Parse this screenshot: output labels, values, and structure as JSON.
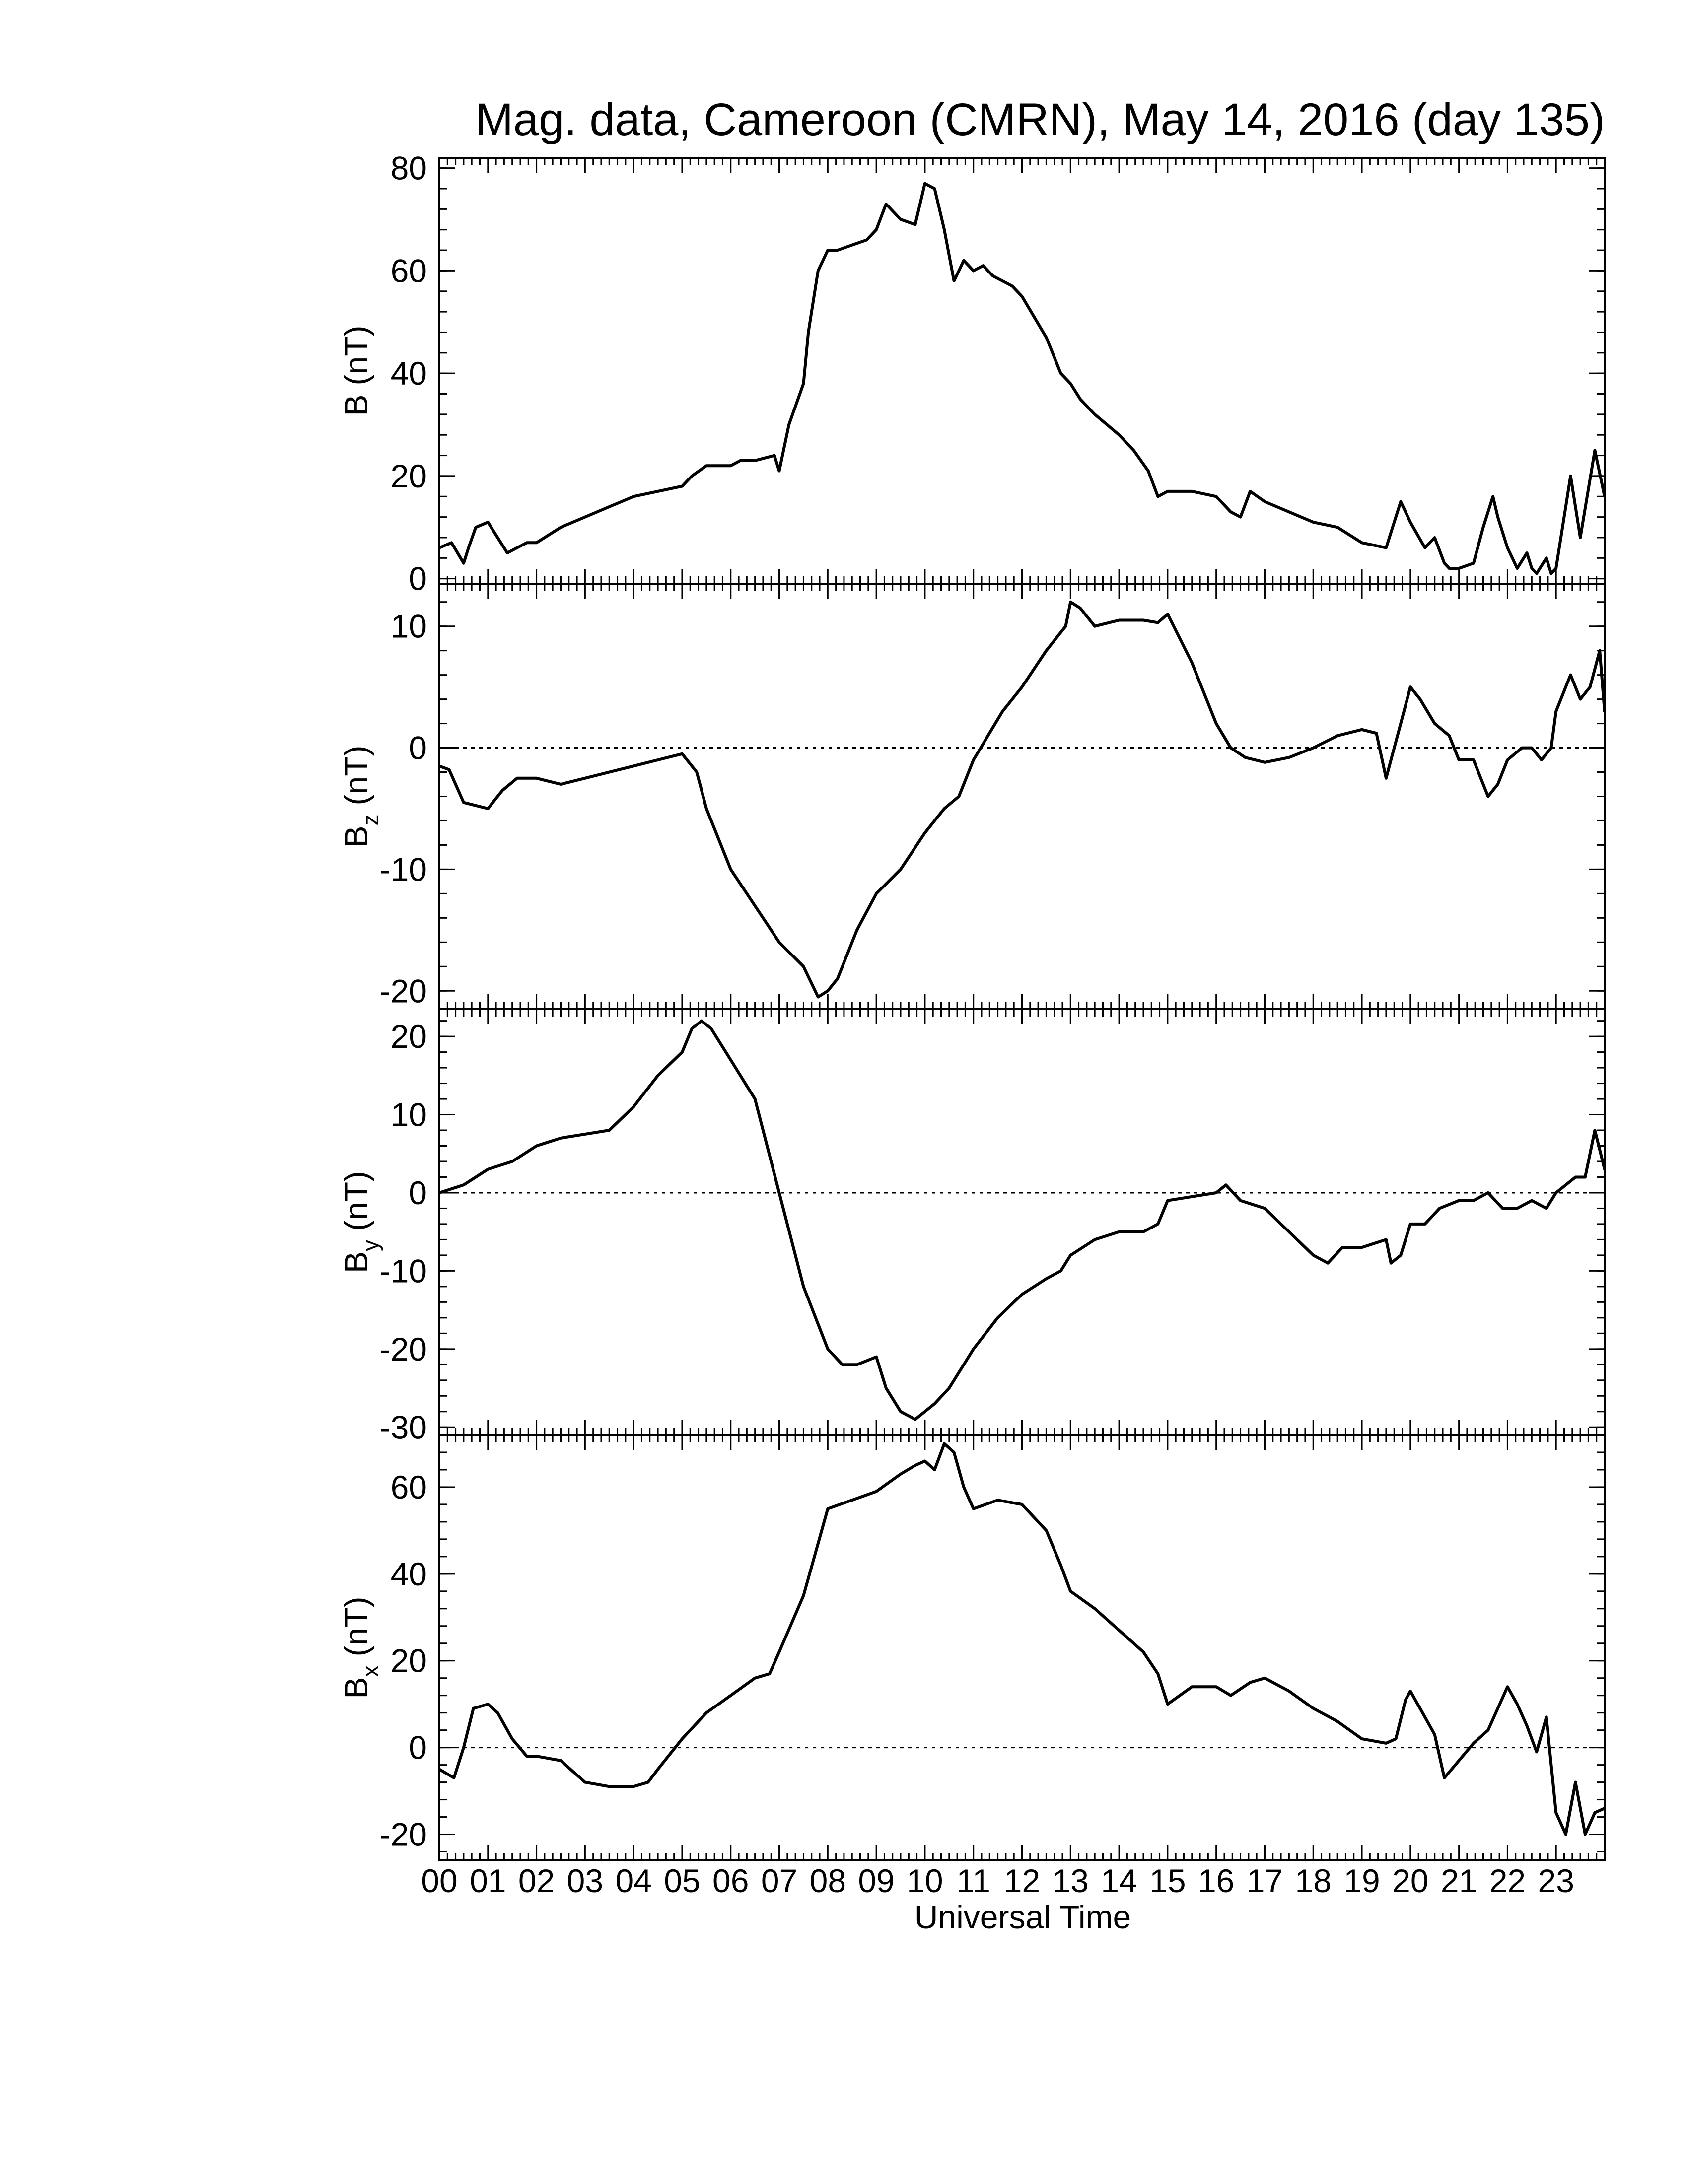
{
  "chart_data": {
    "type": "line",
    "title": "Mag. data, Cameroon (CMRN), May 14, 2016 (day 135)",
    "xlabel": "Universal Time",
    "x_unit": "hours UT",
    "xlim": [
      0,
      24
    ],
    "x_tick_labels": [
      "00",
      "01",
      "02",
      "03",
      "04",
      "05",
      "06",
      "07",
      "08",
      "09",
      "10",
      "11",
      "12",
      "13",
      "14",
      "15",
      "16",
      "17",
      "18",
      "19",
      "20",
      "21",
      "22",
      "23"
    ],
    "grid": false,
    "legend": "none",
    "panels": [
      {
        "id": "B",
        "ylabel_main": "B",
        "ylabel_sub": "",
        "ylabel_unit": "(nT)",
        "ylim": [
          -1,
          82
        ],
        "yticks": [
          0,
          20,
          40,
          60,
          80
        ],
        "zero_line": false,
        "series": [
          {
            "color": "#000000",
            "x": [
              0,
              0.25,
              0.5,
              0.6,
              0.75,
              1.0,
              1.2,
              1.4,
              1.6,
              1.8,
              2.0,
              2.5,
              3.0,
              3.5,
              4.0,
              4.5,
              5.0,
              5.2,
              5.5,
              6.0,
              6.2,
              6.5,
              6.9,
              7.0,
              7.2,
              7.5,
              7.6,
              7.8,
              8.0,
              8.2,
              8.5,
              8.8,
              9.0,
              9.2,
              9.5,
              9.8,
              10.0,
              10.2,
              10.4,
              10.6,
              10.8,
              11.0,
              11.2,
              11.4,
              11.6,
              11.8,
              12.0,
              12.5,
              12.8,
              13.0,
              13.2,
              13.5,
              14.0,
              14.3,
              14.6,
              14.8,
              15.0,
              15.2,
              15.5,
              16.0,
              16.3,
              16.5,
              16.7,
              17.0,
              17.5,
              18.0,
              18.5,
              19.0,
              19.5,
              19.7,
              19.8,
              20.0,
              20.3,
              20.5,
              20.7,
              20.8,
              21.0,
              21.3,
              21.5,
              21.7,
              21.8,
              22.0,
              22.2,
              22.4,
              22.5,
              22.6,
              22.8,
              22.9,
              23.0,
              23.3,
              23.5,
              23.8,
              24.0
            ],
            "y": [
              6,
              7,
              3,
              6,
              10,
              11,
              8,
              5,
              6,
              7,
              7,
              10,
              12,
              14,
              16,
              17,
              18,
              20,
              22,
              22,
              23,
              23,
              24,
              21,
              30,
              38,
              48,
              60,
              64,
              64,
              65,
              66,
              68,
              73,
              70,
              69,
              77,
              76,
              68,
              58,
              62,
              60,
              61,
              59,
              58,
              57,
              55,
              47,
              40,
              38,
              35,
              32,
              28,
              25,
              21,
              16,
              17,
              17,
              17,
              16,
              13,
              12,
              17,
              15,
              13,
              11,
              10,
              7,
              6,
              12,
              15,
              11,
              6,
              8,
              3,
              2,
              2,
              3,
              10,
              16,
              12,
              6,
              2,
              5,
              2,
              1,
              4,
              1,
              2,
              20,
              8,
              25,
              16
            ]
          }
        ]
      },
      {
        "id": "Bz",
        "ylabel_main": "B",
        "ylabel_sub": "z",
        "ylabel_unit": "(nT)",
        "ylim": [
          -21.5,
          13.5
        ],
        "yticks": [
          -20,
          -10,
          0,
          10
        ],
        "zero_line": true,
        "series": [
          {
            "color": "#000000",
            "x": [
              0,
              0.2,
              0.5,
              1.0,
              1.3,
              1.6,
              2.0,
              2.5,
              3.0,
              3.5,
              4.0,
              4.5,
              5.0,
              5.3,
              5.5,
              6.0,
              6.5,
              7.0,
              7.5,
              7.8,
              8.0,
              8.2,
              8.4,
              8.6,
              9.0,
              9.5,
              10.0,
              10.4,
              10.7,
              11.0,
              11.3,
              11.6,
              12.0,
              12.5,
              12.9,
              13.0,
              13.2,
              13.5,
              14.0,
              14.5,
              14.8,
              15.0,
              15.5,
              16.0,
              16.3,
              16.6,
              17.0,
              17.5,
              18.0,
              18.5,
              19.0,
              19.3,
              19.5,
              19.6,
              19.8,
              20.0,
              20.2,
              20.5,
              20.8,
              21.0,
              21.3,
              21.6,
              21.8,
              22.0,
              22.3,
              22.5,
              22.7,
              22.9,
              23.0,
              23.3,
              23.5,
              23.7,
              23.9,
              24.0
            ],
            "y": [
              -1.5,
              -1.8,
              -4.5,
              -5,
              -3.5,
              -2.5,
              -2.5,
              -3,
              -2.5,
              -2,
              -1.5,
              -1,
              -0.5,
              -2,
              -5,
              -10,
              -13,
              -16,
              -18,
              -20.5,
              -20,
              -19,
              -17,
              -15,
              -12,
              -10,
              -7,
              -5,
              -4,
              -1,
              1,
              3,
              5,
              8,
              10,
              12,
              11.5,
              10,
              10.5,
              10.5,
              10.3,
              11,
              7,
              2,
              0,
              -0.8,
              -1.2,
              -0.8,
              0,
              1,
              1.5,
              1.2,
              -2.5,
              -1,
              2,
              5,
              4,
              2,
              1,
              -1,
              -1,
              -4,
              -3,
              -1,
              0,
              0,
              -1,
              0,
              3,
              6,
              4,
              5,
              8,
              3
            ]
          }
        ]
      },
      {
        "id": "By",
        "ylabel_main": "B",
        "ylabel_sub": "y",
        "ylabel_unit": "(nT)",
        "ylim": [
          -31,
          23.5
        ],
        "yticks": [
          -30,
          -20,
          -10,
          0,
          10,
          20
        ],
        "zero_line": true,
        "series": [
          {
            "color": "#000000",
            "x": [
              0,
              0.5,
              1.0,
              1.5,
              2.0,
              2.5,
              3.0,
              3.5,
              4.0,
              4.5,
              5.0,
              5.2,
              5.4,
              5.6,
              6.0,
              6.5,
              7.0,
              7.5,
              8.0,
              8.3,
              8.6,
              9.0,
              9.2,
              9.5,
              9.8,
              10.0,
              10.2,
              10.5,
              10.8,
              11.0,
              11.5,
              12.0,
              12.5,
              12.8,
              13.0,
              13.5,
              14.0,
              14.5,
              14.8,
              15.0,
              15.5,
              16.0,
              16.2,
              16.5,
              17.0,
              17.5,
              18.0,
              18.3,
              18.6,
              19.0,
              19.5,
              19.6,
              19.8,
              20.0,
              20.3,
              20.6,
              21.0,
              21.3,
              21.6,
              21.9,
              22.2,
              22.5,
              22.8,
              23.0,
              23.2,
              23.4,
              23.6,
              23.8,
              24.0
            ],
            "y": [
              0,
              1,
              3,
              4,
              6,
              7,
              7.5,
              8,
              11,
              15,
              18,
              21,
              22,
              21,
              17,
              12,
              0,
              -12,
              -20,
              -22,
              -22,
              -21,
              -25,
              -28,
              -29,
              -28,
              -27,
              -25,
              -22,
              -20,
              -16,
              -13,
              -11,
              -10,
              -8,
              -6,
              -5,
              -5,
              -4,
              -1,
              -0.5,
              0,
              1,
              -1,
              -2,
              -5,
              -8,
              -9,
              -7,
              -7,
              -6,
              -9,
              -8,
              -4,
              -4,
              -2,
              -1,
              -1,
              0,
              -2,
              -2,
              -1,
              -2,
              0,
              1,
              2,
              2,
              8,
              3
            ]
          }
        ]
      },
      {
        "id": "Bx",
        "ylabel_main": "B",
        "ylabel_sub": "x",
        "ylabel_unit": "(nT)",
        "ylim": [
          -26,
          72
        ],
        "yticks": [
          -20,
          0,
          20,
          40,
          60
        ],
        "zero_line": true,
        "series": [
          {
            "color": "#000000",
            "x": [
              0,
              0.3,
              0.5,
              0.7,
              1.0,
              1.2,
              1.5,
              1.8,
              2.0,
              2.5,
              3.0,
              3.5,
              4.0,
              4.3,
              4.5,
              5.0,
              5.5,
              6.0,
              6.5,
              6.8,
              7.0,
              7.5,
              7.8,
              8.0,
              8.5,
              9.0,
              9.5,
              9.8,
              10.0,
              10.2,
              10.4,
              10.6,
              10.8,
              11.0,
              11.5,
              12.0,
              12.5,
              12.8,
              13.0,
              13.5,
              14.0,
              14.5,
              14.8,
              15.0,
              15.5,
              16.0,
              16.3,
              16.7,
              17.0,
              17.5,
              18.0,
              18.5,
              19.0,
              19.5,
              19.7,
              19.9,
              20.0,
              20.2,
              20.5,
              20.7,
              21.0,
              21.3,
              21.6,
              21.8,
              22.0,
              22.2,
              22.4,
              22.6,
              22.8,
              23.0,
              23.2,
              23.4,
              23.6,
              23.8,
              24.0
            ],
            "y": [
              -5,
              -7,
              0,
              9,
              10,
              8,
              2,
              -2,
              -2,
              -3,
              -8,
              -9,
              -9,
              -8,
              -5,
              2,
              8,
              12,
              16,
              17,
              22,
              35,
              47,
              55,
              57,
              59,
              63,
              65,
              66,
              64,
              70,
              68,
              60,
              55,
              57,
              56,
              50,
              42,
              36,
              32,
              27,
              22,
              17,
              10,
              14,
              14,
              12,
              15,
              16,
              13,
              9,
              6,
              2,
              1,
              2,
              11,
              13,
              9,
              3,
              -7,
              -3,
              1,
              4,
              9,
              14,
              10,
              5,
              -1,
              7,
              -15,
              -20,
              -8,
              -20,
              -15,
              -14
            ]
          }
        ]
      }
    ]
  }
}
